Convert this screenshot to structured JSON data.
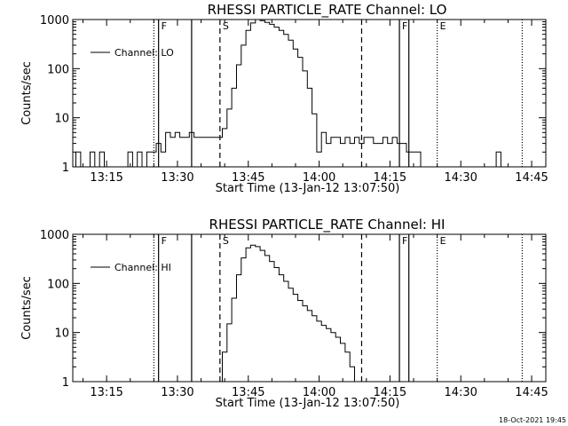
{
  "footer": {
    "timestamp": "18-Oct-2021 19:45"
  },
  "chart_data": [
    {
      "type": "line",
      "title": "RHESSI PARTICLE_RATE Channel: LO",
      "xlabel": "Start Time (13-Jan-12 13:07:50)",
      "ylabel": "Counts/sec",
      "y_scale": "log",
      "ylim": [
        1,
        1000
      ],
      "xlim_minutes": [
        "13:07:50",
        "14:48:00"
      ],
      "x_ticks": [
        "13:15",
        "13:30",
        "13:45",
        "14:00",
        "14:15",
        "14:30",
        "14:45"
      ],
      "y_ticks": [
        "1",
        "10",
        "100",
        "1000"
      ],
      "legend": {
        "position": "top-left",
        "label": "Channel: LO"
      },
      "markers": [
        {
          "time": "13:25",
          "style": "dotted",
          "label": ""
        },
        {
          "time": "13:26",
          "style": "solid",
          "label": "F"
        },
        {
          "time": "13:33",
          "style": "solid",
          "label": ""
        },
        {
          "time": "13:39",
          "style": "dashed",
          "label": "S"
        },
        {
          "time": "14:09",
          "style": "dashed",
          "label": ""
        },
        {
          "time": "14:17",
          "style": "solid",
          "label": "F"
        },
        {
          "time": "14:19",
          "style": "solid",
          "label": ""
        },
        {
          "time": "14:25",
          "style": "dotted",
          "label": "E"
        },
        {
          "time": "14:43",
          "style": "dotted",
          "label": ""
        }
      ],
      "series": [
        {
          "name": "Channel: LO",
          "x": [
            "13:08",
            "13:09",
            "13:10",
            "13:11",
            "13:12",
            "13:13",
            "13:14",
            "13:15",
            "13:16",
            "13:17",
            "13:18",
            "13:19",
            "13:20",
            "13:21",
            "13:22",
            "13:23",
            "13:24",
            "13:25",
            "13:26",
            "13:27",
            "13:28",
            "13:29",
            "13:30",
            "13:31",
            "13:32",
            "13:33",
            "13:34",
            "13:35",
            "13:36",
            "13:37",
            "13:38",
            "13:39",
            "13:40",
            "13:41",
            "13:42",
            "13:43",
            "13:44",
            "13:45",
            "13:46",
            "13:47",
            "13:48",
            "13:49",
            "13:50",
            "13:51",
            "13:52",
            "13:53",
            "13:54",
            "13:55",
            "13:56",
            "13:57",
            "13:58",
            "13:59",
            "14:00",
            "14:01",
            "14:02",
            "14:03",
            "14:04",
            "14:05",
            "14:06",
            "14:07",
            "14:08",
            "14:09",
            "14:10",
            "14:11",
            "14:12",
            "14:13",
            "14:14",
            "14:15",
            "14:16",
            "14:17",
            "14:18",
            "14:19",
            "14:20",
            "14:21",
            "14:22",
            "14:23",
            "14:24",
            "14:25",
            "14:26",
            "14:27",
            "14:28",
            "14:29",
            "14:30",
            "14:31",
            "14:32",
            "14:33",
            "14:34",
            "14:35",
            "14:36",
            "14:37",
            "14:38",
            "14:39",
            "14:40",
            "14:41",
            "14:42",
            "14:43",
            "14:44",
            "14:45",
            "14:46",
            "14:47"
          ],
          "y": [
            1,
            2,
            1,
            1,
            2,
            1,
            2,
            1,
            1,
            1,
            1,
            1,
            2,
            1,
            2,
            1,
            2,
            2,
            3,
            2,
            5,
            4,
            5,
            4,
            4,
            5,
            4,
            4,
            4,
            4,
            4,
            4,
            6,
            15,
            40,
            120,
            300,
            600,
            850,
            1000,
            950,
            870,
            800,
            700,
            600,
            500,
            380,
            250,
            170,
            90,
            40,
            12,
            2,
            5,
            3,
            4,
            4,
            3,
            4,
            3,
            4,
            3,
            4,
            4,
            3,
            3,
            4,
            3,
            4,
            3,
            3,
            2,
            2,
            2,
            1,
            1,
            1,
            1,
            1,
            1,
            1,
            1,
            1,
            1,
            1,
            1,
            1,
            1,
            1,
            1,
            2,
            1,
            1,
            1,
            1,
            1,
            1,
            1,
            1,
            1
          ]
        }
      ]
    },
    {
      "type": "line",
      "title": "RHESSI PARTICLE_RATE Channel: HI",
      "xlabel": "Start Time (13-Jan-12 13:07:50)",
      "ylabel": "Counts/sec",
      "y_scale": "log",
      "ylim": [
        1,
        1000
      ],
      "xlim_minutes": [
        "13:07:50",
        "14:48:00"
      ],
      "x_ticks": [
        "13:15",
        "13:30",
        "13:45",
        "14:00",
        "14:15",
        "14:30",
        "14:45"
      ],
      "y_ticks": [
        "1",
        "10",
        "100",
        "1000"
      ],
      "legend": {
        "position": "top-left",
        "label": "Channel: HI"
      },
      "markers": [
        {
          "time": "13:25",
          "style": "dotted",
          "label": ""
        },
        {
          "time": "13:26",
          "style": "solid",
          "label": "F"
        },
        {
          "time": "13:33",
          "style": "solid",
          "label": ""
        },
        {
          "time": "13:39",
          "style": "dashed",
          "label": "S"
        },
        {
          "time": "14:09",
          "style": "dashed",
          "label": ""
        },
        {
          "time": "14:17",
          "style": "solid",
          "label": "F"
        },
        {
          "time": "14:19",
          "style": "solid",
          "label": ""
        },
        {
          "time": "14:25",
          "style": "dotted",
          "label": "E"
        },
        {
          "time": "14:43",
          "style": "dotted",
          "label": ""
        }
      ],
      "series": [
        {
          "name": "Channel: HI",
          "x": [
            "13:39",
            "13:40",
            "13:41",
            "13:42",
            "13:43",
            "13:44",
            "13:45",
            "13:46",
            "13:47",
            "13:48",
            "13:49",
            "13:50",
            "13:51",
            "13:52",
            "13:53",
            "13:54",
            "13:55",
            "13:56",
            "13:57",
            "13:58",
            "13:59",
            "14:00",
            "14:01",
            "14:02",
            "14:03",
            "14:04",
            "14:05",
            "14:06",
            "14:07",
            "14:08"
          ],
          "y": [
            1,
            4,
            15,
            50,
            150,
            330,
            530,
            600,
            560,
            470,
            370,
            280,
            210,
            150,
            110,
            80,
            60,
            45,
            35,
            28,
            22,
            17,
            14,
            12,
            10,
            8,
            6,
            4,
            2,
            1
          ]
        }
      ]
    }
  ]
}
